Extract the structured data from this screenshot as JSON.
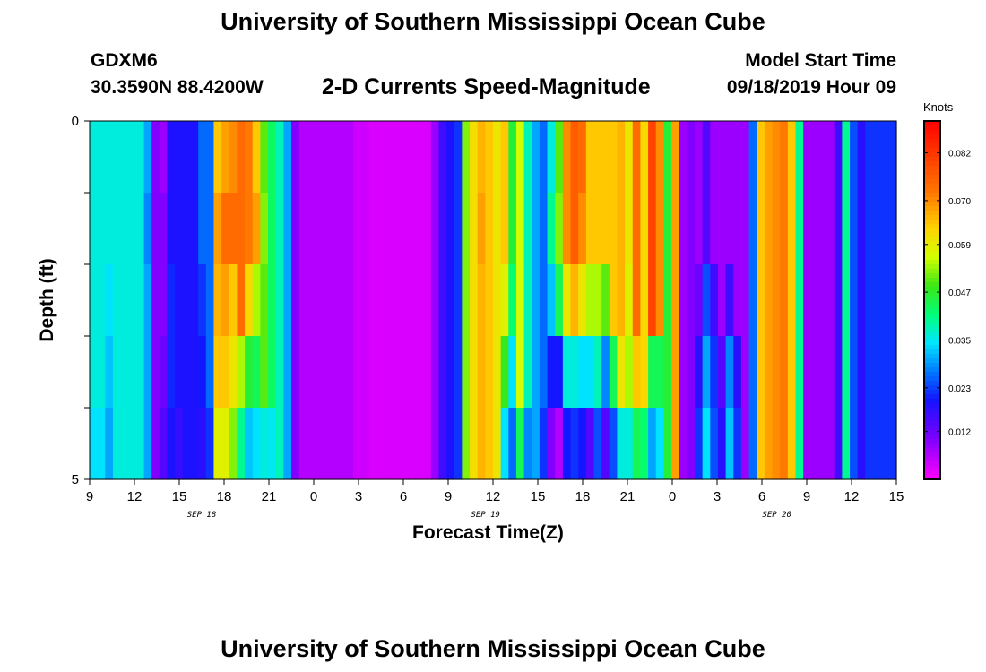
{
  "chart_data": {
    "type": "heatmap",
    "title": "University of Southern Mississippi Ocean Cube",
    "bottom_title": "University of Southern Mississippi Ocean Cube",
    "subtitle": "2-D Currents Speed-Magnitude",
    "station": {
      "name": "GDXM6",
      "coords": "30.3590N 88.4200W"
    },
    "model": {
      "label": "Model Start Time",
      "time": "09/18/2019 Hour 09"
    },
    "xlabel": "Forecast Time(Z)",
    "ylabel": "Depth (ft)",
    "x_start_hour": 9,
    "x_hours": 54,
    "ylim": [
      0,
      5
    ],
    "y_ticks": [
      "0",
      "5"
    ],
    "x_ticks": [
      "9",
      "12",
      "15",
      "18",
      "21",
      "0",
      "3",
      "6",
      "9",
      "12",
      "15",
      "18",
      "21",
      "0",
      "3",
      "6",
      "9",
      "12",
      "15"
    ],
    "date_labels": [
      {
        "label": "SEP 18",
        "hour": 16.5
      },
      {
        "label": "SEP 19",
        "hour": 35.5
      },
      {
        "label": "SEP 20",
        "hour": 55
      }
    ],
    "colorbar": {
      "unit": "Knots",
      "min": 0.0,
      "max": 0.09,
      "ticks": [
        "0.012",
        "0.023",
        "0.035",
        "0.047",
        "0.059",
        "0.070",
        "0.082"
      ],
      "tick_values": [
        0.012,
        0.023,
        0.035,
        0.047,
        0.059,
        0.07,
        0.082
      ]
    },
    "columns": [
      0.036,
      0.036,
      0.036,
      0.036,
      0.036,
      0.036,
      0.036,
      0.03,
      0.01,
      0.008,
      0.019,
      0.019,
      0.019,
      0.019,
      0.026,
      0.026,
      0.064,
      0.068,
      0.07,
      0.074,
      0.072,
      0.064,
      0.05,
      0.043,
      0.038,
      0.03,
      0.01,
      0.006,
      0.006,
      0.006,
      0.006,
      0.006,
      0.006,
      0.006,
      0.004,
      0.004,
      0.003,
      0.003,
      0.003,
      0.003,
      0.003,
      0.003,
      0.003,
      0.003,
      0.008,
      0.016,
      0.019,
      0.022,
      0.052,
      0.061,
      0.066,
      0.064,
      0.06,
      0.064,
      0.046,
      0.056,
      0.038,
      0.03,
      0.026,
      0.036,
      0.05,
      0.07,
      0.076,
      0.074,
      0.064,
      0.064,
      0.064,
      0.064,
      0.066,
      0.06,
      0.074,
      0.062,
      0.08,
      0.07,
      0.046,
      0.068,
      0.008,
      0.01,
      0.008,
      0.014,
      0.008,
      0.008,
      0.008,
      0.008,
      0.008,
      0.026,
      0.064,
      0.068,
      0.07,
      0.072,
      0.064,
      0.04,
      0.008,
      0.008,
      0.008,
      0.008,
      0.016,
      0.04,
      0.024,
      0.018,
      0.022,
      0.022,
      0.022,
      0.022
    ],
    "rows": [
      [
        0.0,
        0.0,
        0.0,
        0.0,
        0.0,
        0.0,
        0.0,
        0.0,
        0.0,
        0.0,
        0.0,
        0.0,
        0.0,
        0.0,
        0.0,
        0.0,
        0.0,
        0.0,
        0.0,
        0.0,
        0.0,
        0.0,
        0.0,
        0.0,
        0.0,
        0.0,
        0.0,
        0.0,
        0.0,
        0.0,
        0.0,
        0.0,
        0.0,
        0.0,
        0.0,
        0.0,
        0.0,
        0.0,
        0.0,
        0.0,
        0.0,
        0.0,
        0.0,
        0.0,
        0.0,
        0.0,
        0.0,
        0.0,
        0.0,
        0.0,
        0.0,
        0.0,
        0.0,
        0.0,
        0.0,
        0.0,
        0.0,
        0.0,
        0.0,
        0.0,
        0.0,
        0.0,
        0.0,
        0.0,
        0.0,
        0.0,
        0.0,
        0.0,
        0.0,
        0.0,
        0.0,
        0.0,
        0.0,
        0.0,
        0.0,
        0.0,
        0.0,
        0.0,
        0.0,
        0.0,
        0.0,
        0.0,
        0.0,
        0.0,
        0.0,
        0.0,
        0.0,
        0.0,
        0.0,
        0.0,
        0.0,
        0.0,
        0.0,
        0.0,
        0.0,
        0.0,
        0.0,
        0.0,
        0.0,
        0.0,
        0.0,
        0.0,
        0.0,
        0.0
      ],
      [
        0.0,
        0.0,
        0.0,
        0.0,
        0.0,
        0.0,
        0.0,
        -0.002,
        0.0,
        0.002,
        0.0,
        0.0,
        0.0,
        0.0,
        0.0,
        0.0,
        0.004,
        0.006,
        0.004,
        0.0,
        0.0,
        0.004,
        0.002,
        0.0,
        0.0,
        0.0,
        0.0,
        0.0,
        0.0,
        0.0,
        0.0,
        0.0,
        0.0,
        0.0,
        0.0,
        0.0,
        0.0,
        0.0,
        0.0,
        0.0,
        0.0,
        0.0,
        0.0,
        0.0,
        0.0,
        0.0,
        0.0,
        0.0,
        0.0,
        0.0,
        0.002,
        0.0,
        0.0,
        0.0,
        0.0,
        0.0,
        0.0,
        0.0,
        0.0,
        0.004,
        0.002,
        0.0,
        0.0,
        -0.004,
        0.0,
        0.0,
        0.0,
        0.0,
        0.0,
        0.0,
        0.0,
        0.0,
        0.0,
        0.0,
        0.0,
        0.0,
        0.0,
        0.0,
        0.0,
        0.0,
        0.0,
        0.0,
        0.0,
        0.0,
        0.0,
        0.0,
        0.0,
        0.0,
        0.0,
        0.0,
        0.0,
        0.0,
        0.0,
        0.0,
        0.0,
        0.0,
        0.0,
        0.0,
        0.0,
        0.0,
        0.0,
        0.0,
        0.0,
        0.0
      ],
      [
        0.0,
        0.0,
        -0.002,
        0.0,
        0.0,
        0.0,
        0.0,
        0.0,
        0.0,
        0.002,
        0.002,
        0.0,
        0.0,
        0.0,
        -0.004,
        0.0,
        0.002,
        0.0,
        -0.006,
        0.0,
        -0.01,
        -0.01,
        0.0,
        0.0,
        0.0,
        0.0,
        0.0,
        0.0,
        0.0,
        0.0,
        0.0,
        0.0,
        0.0,
        0.0,
        0.0,
        0.0,
        0.0,
        0.0,
        0.0,
        0.0,
        0.0,
        0.0,
        0.0,
        0.0,
        0.0,
        0.0,
        0.0,
        0.0,
        0.0,
        0.0,
        0.0,
        0.0,
        0.0,
        -0.006,
        -0.004,
        0.0,
        0.0,
        0.0,
        0.0,
        -0.004,
        -0.006,
        -0.01,
        -0.01,
        -0.014,
        -0.01,
        -0.01,
        -0.014,
        0.0,
        0.0,
        -0.002,
        0.0,
        0.0,
        0.0,
        0.0,
        0.0,
        0.0,
        0.0,
        0.0,
        0.004,
        0.01,
        0.008,
        0.0,
        0.008,
        0.0,
        0.0,
        0.0,
        0.0,
        0.0,
        0.0,
        0.0,
        0.0,
        0.0,
        0.0,
        0.0,
        0.0,
        0.0,
        0.0,
        0.0,
        0.0,
        0.0,
        0.0,
        0.0,
        0.0,
        0.0
      ],
      [
        0.0,
        0.0,
        -0.004,
        0.0,
        0.0,
        0.0,
        0.0,
        0.0,
        0.0,
        0.004,
        0.002,
        0.0,
        0.0,
        0.0,
        -0.006,
        0.0,
        0.0,
        -0.004,
        -0.01,
        -0.02,
        -0.026,
        -0.02,
        0.0,
        0.0,
        0.0,
        0.0,
        0.0,
        0.0,
        0.0,
        0.0,
        0.0,
        0.0,
        0.0,
        0.0,
        0.0,
        0.0,
        0.0,
        0.0,
        0.0,
        0.0,
        0.0,
        0.0,
        0.0,
        0.0,
        0.0,
        0.0,
        0.0,
        0.0,
        0.0,
        0.0,
        0.0,
        0.0,
        0.0,
        -0.016,
        -0.012,
        0.0,
        0.0,
        0.0,
        0.0,
        -0.016,
        -0.03,
        -0.034,
        -0.04,
        -0.04,
        -0.03,
        -0.026,
        -0.036,
        -0.02,
        -0.006,
        -0.006,
        -0.01,
        0.0,
        -0.036,
        -0.026,
        0.0,
        0.0,
        0.0,
        0.0,
        0.01,
        0.016,
        0.014,
        0.006,
        0.02,
        0.01,
        0.0,
        0.0,
        0.0,
        0.0,
        0.0,
        0.0,
        0.0,
        0.0,
        0.0,
        0.0,
        0.0,
        0.0,
        0.0,
        0.0,
        0.0,
        0.0,
        0.0,
        0.0,
        0.0,
        0.0
      ],
      [
        -0.002,
        -0.002,
        -0.006,
        0.0,
        0.0,
        0.0,
        0.0,
        0.0,
        0.0,
        0.006,
        0.0,
        -0.002,
        0.0,
        0.0,
        -0.008,
        -0.004,
        -0.006,
        -0.01,
        -0.018,
        -0.034,
        -0.04,
        -0.03,
        -0.014,
        -0.008,
        0.0,
        0.0,
        0.0,
        0.0,
        0.0,
        0.0,
        0.0,
        0.0,
        0.0,
        0.0,
        0.0,
        0.0,
        0.0,
        0.0,
        0.0,
        0.0,
        0.0,
        0.0,
        0.0,
        0.0,
        0.0,
        0.0,
        0.0,
        0.0,
        0.0,
        0.0,
        0.0,
        0.0,
        0.0,
        -0.03,
        -0.02,
        -0.012,
        -0.01,
        0.0,
        -0.004,
        -0.026,
        -0.044,
        -0.05,
        -0.054,
        -0.054,
        -0.05,
        -0.04,
        -0.05,
        -0.04,
        -0.03,
        -0.024,
        -0.03,
        -0.02,
        -0.05,
        -0.036,
        0.0,
        0.0,
        0.0,
        0.0,
        0.014,
        0.02,
        0.016,
        0.01,
        0.024,
        0.014,
        0.0,
        0.0,
        0.0,
        0.0,
        0.0,
        0.0,
        0.0,
        0.0,
        0.0,
        0.0,
        0.0,
        0.0,
        0.0,
        0.0,
        0.0,
        0.0,
        0.0,
        0.0,
        0.0,
        0.0
      ]
    ]
  }
}
